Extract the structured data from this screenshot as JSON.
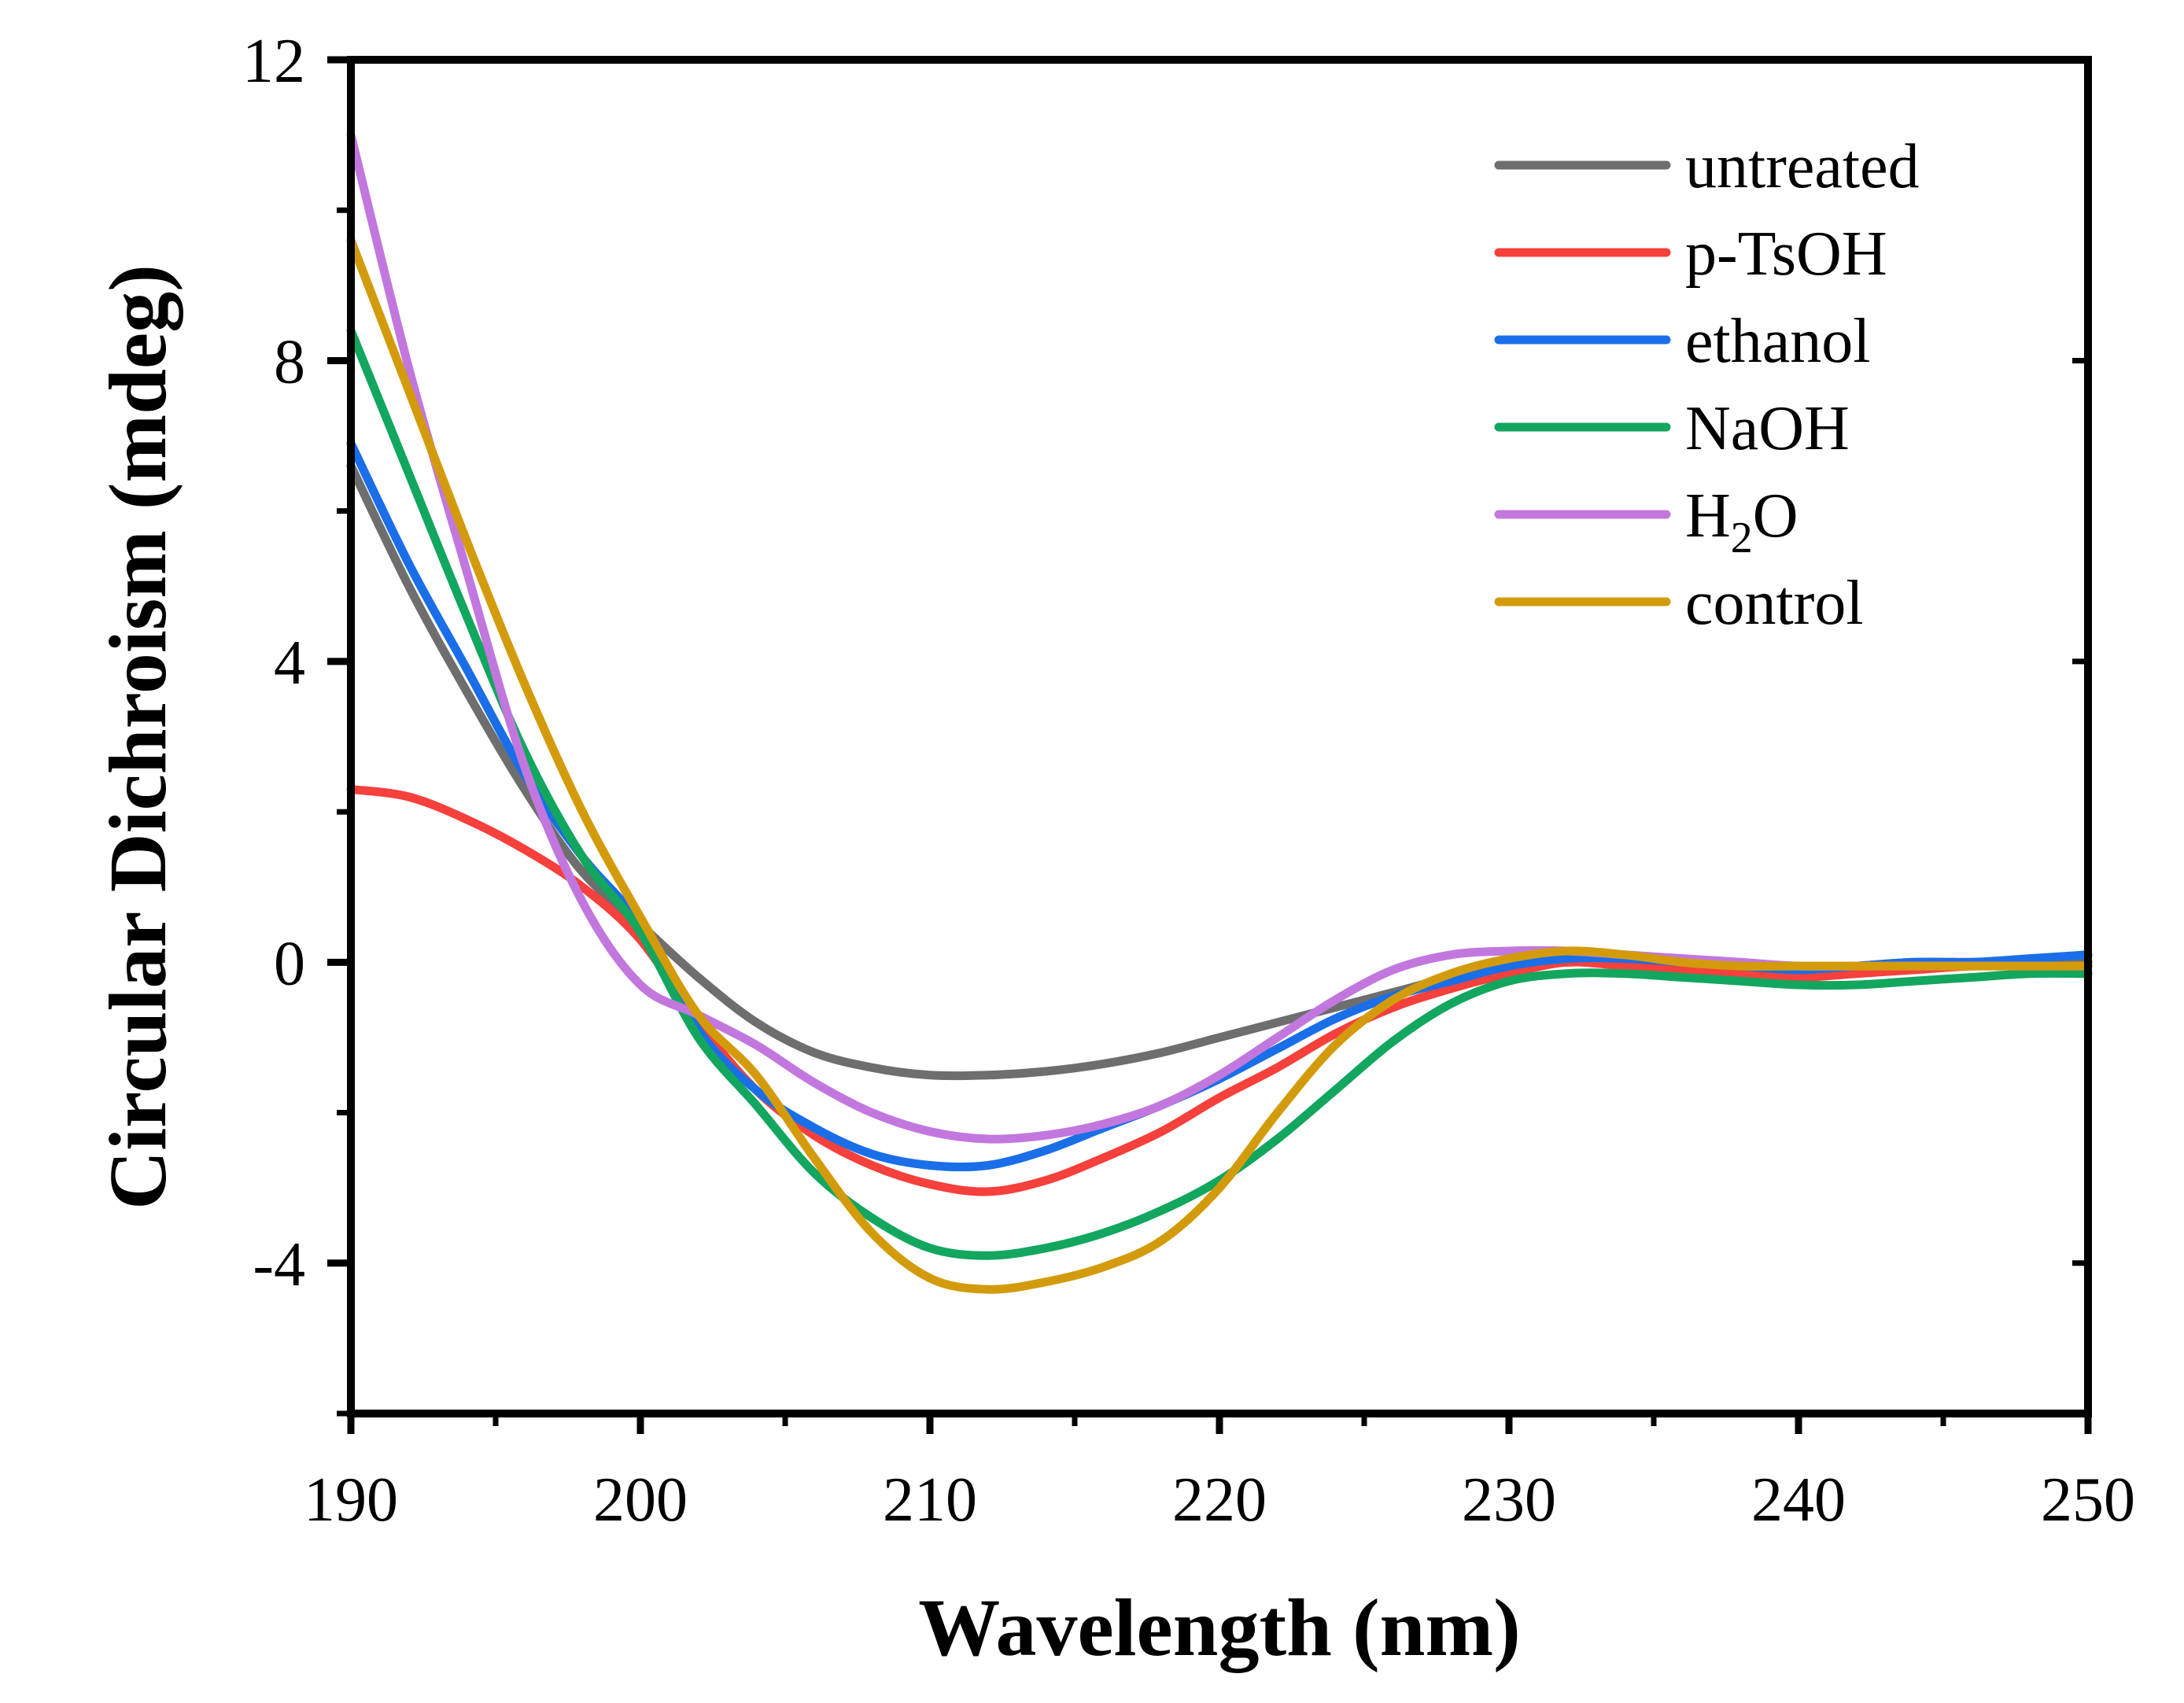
{
  "chart_data": {
    "type": "line",
    "title": "",
    "xlabel": "Wavelength (nm)",
    "ylabel": "Circular Dichroism (mdeg)",
    "xlim": [
      190,
      250
    ],
    "ylim": [
      -6,
      12
    ],
    "xticks": [
      190,
      200,
      210,
      220,
      230,
      240,
      250
    ],
    "yticks": [
      -4,
      0,
      4,
      8,
      12
    ],
    "xtick_labels": [
      "190",
      "200",
      "210",
      "220",
      "230",
      "240",
      "250"
    ],
    "ytick_labels": [
      "-4",
      "0",
      "4",
      "8",
      "12"
    ],
    "grid": false,
    "legend_position": "top-right",
    "x": [
      190,
      192,
      194,
      196,
      198,
      200,
      202,
      204,
      206,
      208,
      210,
      212,
      214,
      216,
      218,
      220,
      222,
      224,
      226,
      228,
      230,
      232,
      234,
      236,
      238,
      240,
      242,
      244,
      246,
      248,
      250
    ],
    "series": [
      {
        "name": "untreated",
        "color": "#6e6e6e",
        "values": [
          6.6,
          5.0,
          3.6,
          2.3,
          1.2,
          0.5,
          -0.2,
          -0.8,
          -1.2,
          -1.4,
          -1.5,
          -1.5,
          -1.45,
          -1.35,
          -1.2,
          -1.0,
          -0.8,
          -0.6,
          -0.4,
          -0.2,
          -0.05,
          0.0,
          0.0,
          -0.05,
          -0.1,
          -0.1,
          -0.05,
          0.0,
          0.0,
          0.0,
          0.0
        ]
      },
      {
        "name": "p-TsOH",
        "color": "#f5403c",
        "values": [
          2.3,
          2.2,
          1.9,
          1.5,
          1.0,
          0.3,
          -0.8,
          -1.7,
          -2.3,
          -2.7,
          -2.95,
          -3.05,
          -2.9,
          -2.6,
          -2.25,
          -1.8,
          -1.4,
          -0.95,
          -0.6,
          -0.35,
          -0.15,
          0.0,
          -0.05,
          -0.1,
          -0.15,
          -0.2,
          -0.15,
          -0.1,
          -0.05,
          -0.05,
          -0.05
        ]
      },
      {
        "name": "ethanol",
        "color": "#1a6fe8",
        "values": [
          6.9,
          5.3,
          3.9,
          2.5,
          1.4,
          0.5,
          -0.9,
          -1.7,
          -2.2,
          -2.55,
          -2.7,
          -2.7,
          -2.5,
          -2.2,
          -1.9,
          -1.55,
          -1.15,
          -0.75,
          -0.45,
          -0.25,
          -0.05,
          0.05,
          0.05,
          0.0,
          -0.05,
          -0.1,
          -0.05,
          0.0,
          0.0,
          0.05,
          0.1
        ]
      },
      {
        "name": "NaOH",
        "color": "#12a65f",
        "values": [
          8.4,
          6.5,
          4.6,
          2.8,
          1.4,
          0.4,
          -1.0,
          -1.9,
          -2.8,
          -3.4,
          -3.8,
          -3.9,
          -3.8,
          -3.6,
          -3.3,
          -2.9,
          -2.35,
          -1.7,
          -1.05,
          -0.55,
          -0.25,
          -0.15,
          -0.15,
          -0.2,
          -0.25,
          -0.3,
          -0.3,
          -0.25,
          -0.2,
          -0.15,
          -0.15
        ]
      },
      {
        "name": "H2O",
        "color": "#c277de",
        "values": [
          11.0,
          7.9,
          5.2,
          2.6,
          0.8,
          -0.3,
          -0.7,
          -1.1,
          -1.6,
          -2.0,
          -2.25,
          -2.35,
          -2.3,
          -2.15,
          -1.9,
          -1.5,
          -1.0,
          -0.5,
          -0.1,
          0.1,
          0.15,
          0.15,
          0.1,
          0.05,
          0.0,
          -0.05,
          -0.05,
          -0.05,
          -0.05,
          -0.05,
          -0.05
        ]
      },
      {
        "name": "control",
        "color": "#d39b0b",
        "values": [
          9.6,
          7.6,
          5.6,
          3.7,
          2.0,
          0.6,
          -0.7,
          -1.5,
          -2.6,
          -3.6,
          -4.2,
          -4.35,
          -4.25,
          -4.05,
          -3.7,
          -3.0,
          -2.0,
          -1.1,
          -0.5,
          -0.15,
          0.05,
          0.15,
          0.1,
          0.0,
          -0.05,
          -0.05,
          -0.05,
          -0.05,
          -0.05,
          -0.05,
          -0.05
        ]
      }
    ]
  }
}
